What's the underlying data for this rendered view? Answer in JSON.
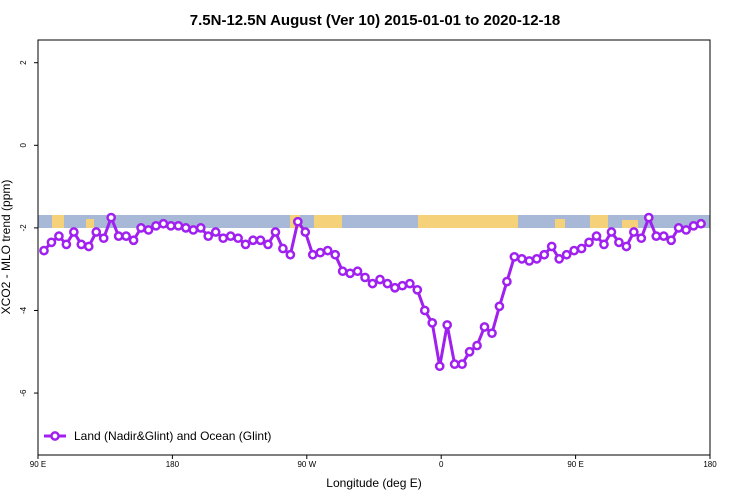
{
  "chart_data": {
    "type": "line",
    "title": "7.5N-12.5N August (Ver 10)   2015-01-01 to 2020-12-18",
    "xlabel": "Longitude (deg E)",
    "ylabel": "XCO2 - MLO trend (ppm)",
    "xlim": [
      -270,
      180
    ],
    "xticks": [
      {
        "value": -270,
        "label": "90 E"
      },
      {
        "value": -180,
        "label": "180"
      },
      {
        "value": -90,
        "label": "90 W"
      },
      0,
      {
        "value": 90,
        "label": "90 E"
      },
      {
        "value": 180,
        "label": "180"
      }
    ],
    "ylim": [
      -7.5,
      2.55
    ],
    "yticks": [
      -6,
      -4,
      -2,
      0,
      2
    ],
    "legend": "bottom-left",
    "x": [
      -266,
      -261,
      -256,
      -251,
      -246,
      -241,
      -236,
      -231,
      -226,
      -221,
      -216,
      -211,
      -206,
      -201,
      -196,
      -191,
      -186,
      -181,
      -176,
      -171,
      -166,
      -161,
      -156,
      -151,
      -146,
      -141,
      -136,
      -131,
      -126,
      -121,
      -116,
      -111,
      -106,
      -101,
      -96,
      -91,
      -86,
      -81,
      -76,
      -71,
      -66,
      -61,
      -56,
      -51,
      -46,
      -41,
      -36,
      -31,
      -26,
      -21,
      -16,
      -11,
      -6,
      -1,
      4,
      9,
      14,
      19,
      24,
      29,
      34,
      39,
      44,
      49,
      54,
      59,
      64,
      69,
      74,
      79,
      84,
      89,
      94,
      99,
      104,
      109,
      114,
      119,
      124,
      129,
      134,
      139,
      144,
      149,
      154,
      159,
      164,
      169,
      174
    ],
    "series": [
      {
        "name": "Land (Nadir&Glint) and Ocean (Glint)",
        "color": "#a020f0",
        "values": [
          -2.55,
          -2.35,
          -2.2,
          -2.4,
          -2.1,
          -2.4,
          -2.45,
          -2.1,
          -2.25,
          -1.75,
          -2.2,
          -2.2,
          -2.3,
          -2.0,
          -2.05,
          -1.95,
          -1.9,
          -1.95,
          -1.95,
          -2.0,
          -2.05,
          -2.0,
          -2.2,
          -2.1,
          -2.25,
          -2.2,
          -2.25,
          -2.4,
          -2.3,
          -2.3,
          -2.4,
          -2.1,
          -2.5,
          -2.65,
          -1.85,
          -2.1,
          -2.65,
          -2.6,
          -2.55,
          -2.65,
          -3.05,
          -3.1,
          -3.05,
          -3.2,
          -3.35,
          -3.25,
          -3.35,
          -3.45,
          -3.4,
          -3.35,
          -3.5,
          -4.0,
          -4.3,
          -5.35,
          -4.35,
          -5.3,
          -5.3,
          -5.0,
          -4.85,
          -4.4,
          -4.55,
          -3.9,
          -3.3,
          -2.7,
          -2.75,
          -2.8,
          -2.75,
          -2.65,
          -2.45,
          -2.75,
          -2.65,
          -2.55,
          -2.5,
          -2.35,
          -2.2,
          -2.4,
          -2.1,
          -2.35,
          -2.45,
          -2.1,
          -2.25,
          -1.75,
          -2.2,
          -2.2,
          -2.3,
          -2.0,
          -2.05,
          -1.95,
          -1.9
        ]
      }
    ]
  }
}
